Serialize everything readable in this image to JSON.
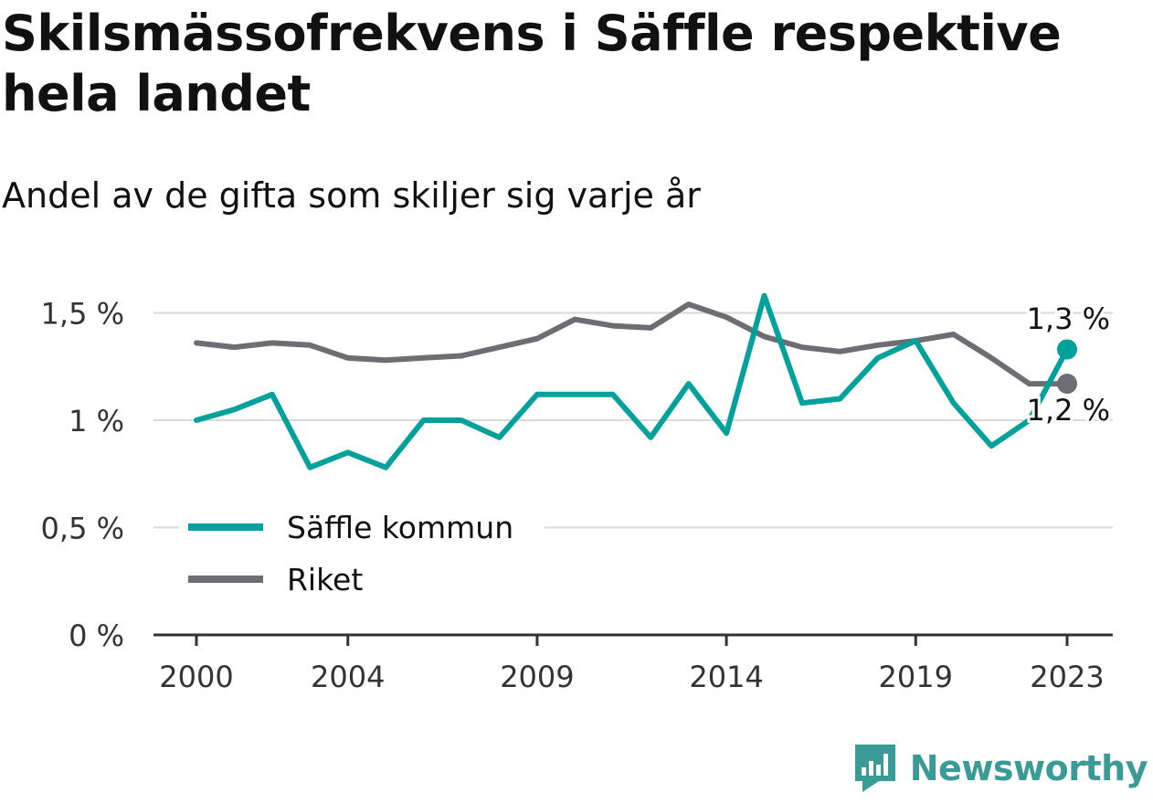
{
  "header": {
    "title": "Skilsmässofrekvens i Säffle respektive hela landet",
    "subtitle": "Andel av de gifta som skiljer sig varje år"
  },
  "brand": {
    "name": "Newsworthy",
    "color": "#3a9a95"
  },
  "chart_data": {
    "type": "line",
    "title": "Skilsmässofrekvens i Säffle respektive hela landet",
    "subtitle": "Andel av de gifta som skiljer sig varje år",
    "x": [
      2000,
      2001,
      2002,
      2003,
      2004,
      2005,
      2006,
      2007,
      2008,
      2009,
      2010,
      2011,
      2012,
      2013,
      2014,
      2015,
      2016,
      2017,
      2018,
      2019,
      2020,
      2021,
      2022,
      2023
    ],
    "x_ticks": [
      "2000",
      "2004",
      "2009",
      "2014",
      "2019",
      "2023"
    ],
    "ylim": [
      0,
      1.6
    ],
    "y_ticks": [
      0,
      0.5,
      1,
      1.5
    ],
    "y_tick_labels": [
      "0 %",
      "0,5 %",
      "1 %",
      "1,5 %"
    ],
    "grid": true,
    "legend": "inside-bottom-left",
    "series": [
      {
        "name": "Säffle kommun",
        "color": "#00a19a",
        "values": [
          1.0,
          1.05,
          1.12,
          0.78,
          0.85,
          0.78,
          1.0,
          1.0,
          0.92,
          1.12,
          1.12,
          1.12,
          0.92,
          1.17,
          0.94,
          1.58,
          1.08,
          1.1,
          1.29,
          1.37,
          1.08,
          0.88,
          1.0,
          1.33
        ],
        "end_label": "1,3 %"
      },
      {
        "name": "Riket",
        "color": "#6e6d73",
        "values": [
          1.36,
          1.34,
          1.36,
          1.35,
          1.29,
          1.28,
          1.29,
          1.3,
          1.34,
          1.38,
          1.47,
          1.44,
          1.43,
          1.54,
          1.48,
          1.39,
          1.34,
          1.32,
          1.35,
          1.37,
          1.4,
          1.29,
          1.17,
          1.17
        ],
        "end_label": "1,2 %"
      }
    ]
  }
}
